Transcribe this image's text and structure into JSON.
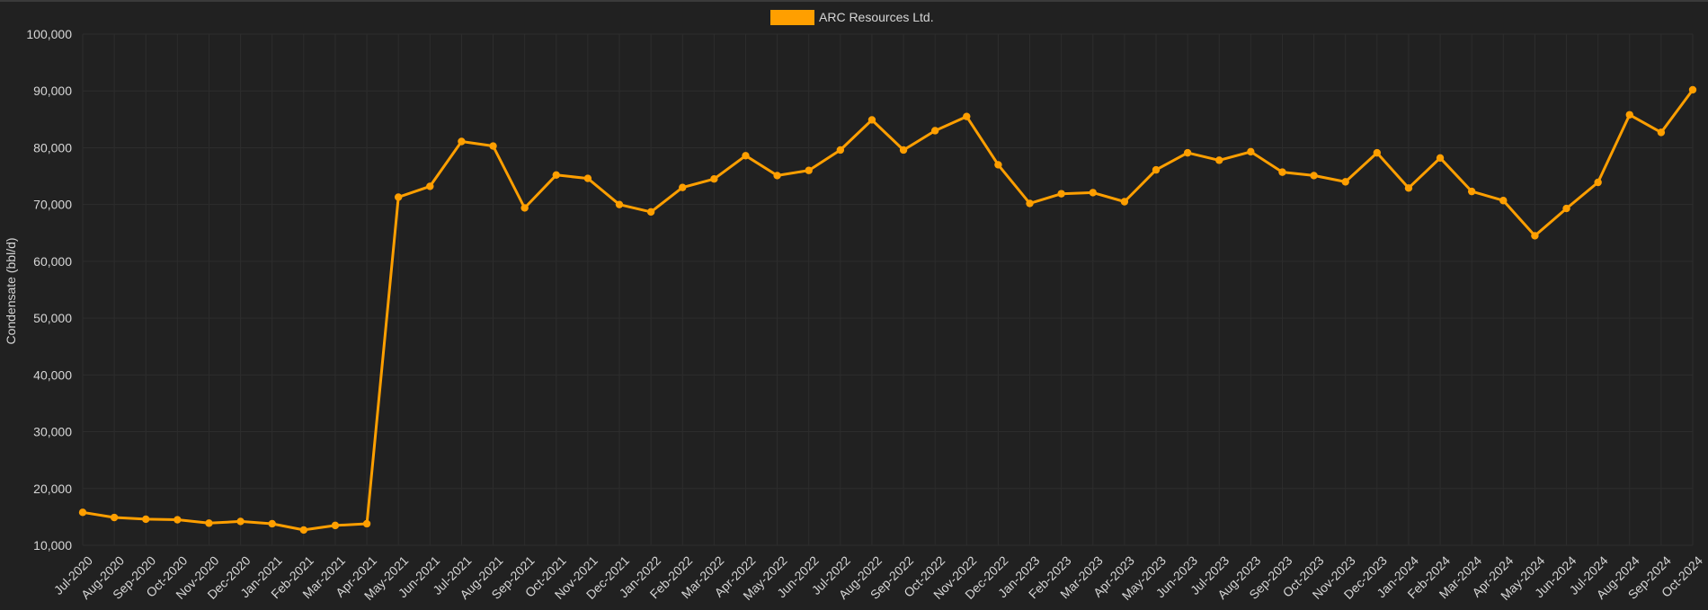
{
  "chart_data": {
    "type": "line",
    "title": "",
    "xlabel": "",
    "ylabel": "Condensate (bbl/d)",
    "ylim": [
      10000,
      100000
    ],
    "y_ticks": [
      "10,000",
      "20,000",
      "30,000",
      "40,000",
      "50,000",
      "60,000",
      "70,000",
      "80,000",
      "90,000",
      "100,000"
    ],
    "grid": true,
    "legend_position": "top-center",
    "categories": [
      "Jul-2020",
      "Aug-2020",
      "Sep-2020",
      "Oct-2020",
      "Nov-2020",
      "Dec-2020",
      "Jan-2021",
      "Feb-2021",
      "Mar-2021",
      "Apr-2021",
      "May-2021",
      "Jun-2021",
      "Jul-2021",
      "Aug-2021",
      "Sep-2021",
      "Oct-2021",
      "Nov-2021",
      "Dec-2021",
      "Jan-2022",
      "Feb-2022",
      "Mar-2022",
      "Apr-2022",
      "May-2022",
      "Jun-2022",
      "Jul-2022",
      "Aug-2022",
      "Sep-2022",
      "Oct-2022",
      "Nov-2022",
      "Dec-2022",
      "Jan-2023",
      "Feb-2023",
      "Mar-2023",
      "Apr-2023",
      "May-2023",
      "Jun-2023",
      "Jul-2023",
      "Aug-2023",
      "Sep-2023",
      "Oct-2023",
      "Nov-2023",
      "Dec-2023",
      "Jan-2024",
      "Feb-2024",
      "Mar-2024",
      "Apr-2024",
      "May-2024",
      "Jun-2024",
      "Jul-2024",
      "Aug-2024",
      "Sep-2024",
      "Oct-2024"
    ],
    "series": [
      {
        "name": "ARC Resources Ltd.",
        "color": "#ff9f00",
        "values": [
          15800,
          14900,
          14600,
          14500,
          13900,
          14200,
          13800,
          12700,
          13500,
          13800,
          71300,
          73200,
          81100,
          80300,
          69400,
          75200,
          74600,
          70000,
          68700,
          73000,
          74500,
          78600,
          75100,
          76000,
          79600,
          84900,
          79600,
          83000,
          85500,
          77000,
          70200,
          71900,
          72100,
          70500,
          76100,
          79100,
          77800,
          79300,
          75700,
          75100,
          74000,
          79100,
          72900,
          78200,
          72300,
          70700,
          64500,
          69300,
          73900,
          85800,
          82700,
          90200
        ]
      }
    ]
  },
  "colors": {
    "background": "#212121",
    "grid": "#2d2d2d",
    "text": "#d6d6d6",
    "series": "#ff9f00"
  }
}
